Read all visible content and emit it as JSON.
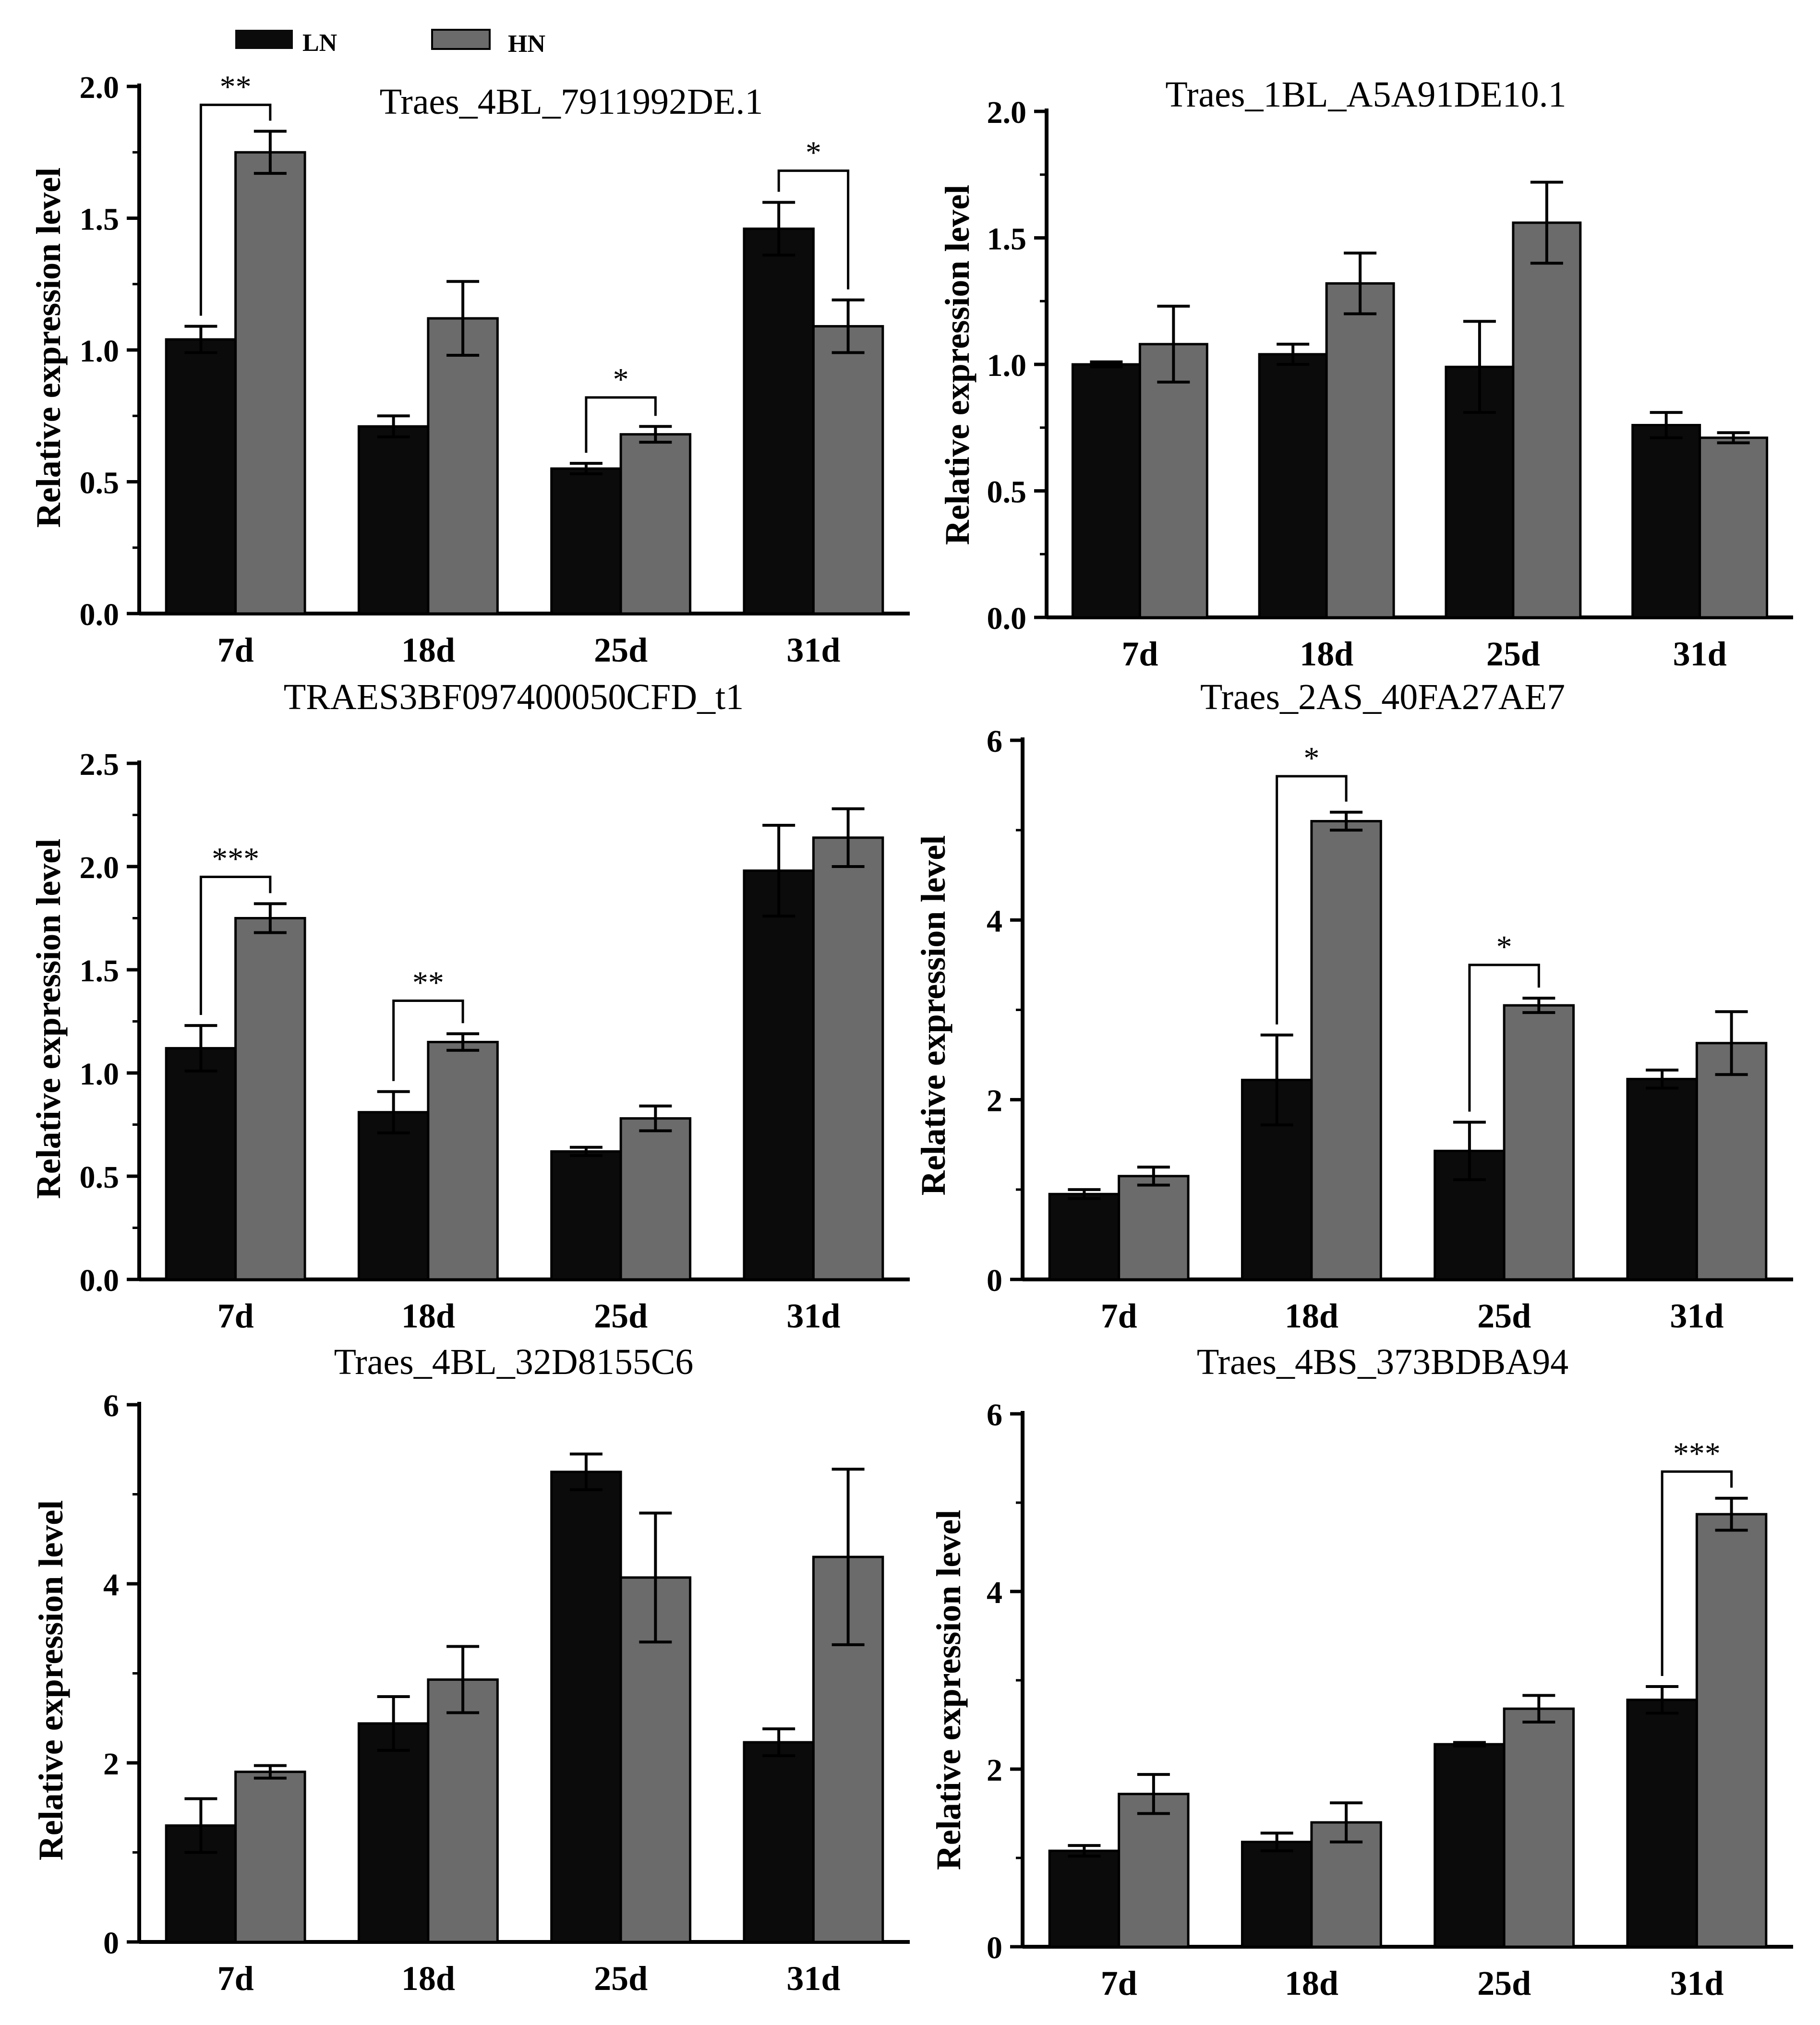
{
  "legend": {
    "items": [
      {
        "label": "LN",
        "color": "#0b0b0b"
      },
      {
        "label": "HN",
        "color": "#6b6b6b"
      }
    ]
  },
  "colors": {
    "ln": "#0b0b0b",
    "hn": "#6b6b6b",
    "axis": "#000000"
  },
  "chart_data": [
    {
      "type": "bar",
      "title": "Traes_4BL_7911992DE.1",
      "categories": [
        "7d",
        "18d",
        "25d",
        "31d"
      ],
      "ylabel": "Relative expression level",
      "ylim": [
        0,
        2.0
      ],
      "yticks": [
        0.0,
        0.5,
        1.0,
        1.5,
        2.0
      ],
      "tick_format": "0.0",
      "series": [
        {
          "name": "LN",
          "values": [
            1.04,
            0.71,
            0.55,
            1.46
          ],
          "errors": [
            0.05,
            0.04,
            0.02,
            0.1
          ]
        },
        {
          "name": "HN",
          "values": [
            1.75,
            1.12,
            0.68,
            1.09
          ],
          "errors": [
            0.08,
            0.14,
            0.03,
            0.1
          ]
        }
      ],
      "significance": [
        {
          "category": 0,
          "label": "**",
          "level": 1.93
        },
        {
          "category": 2,
          "label": "*",
          "level": 0.82
        },
        {
          "category": 3,
          "label": "*",
          "level": 1.68
        }
      ]
    },
    {
      "type": "bar",
      "title": "Traes_1BL_A5A91DE10.1",
      "categories": [
        "7d",
        "18d",
        "25d",
        "31d"
      ],
      "ylabel": "Relative expression level",
      "ylim": [
        0,
        2.0
      ],
      "yticks": [
        0.0,
        0.5,
        1.0,
        1.5,
        2.0
      ],
      "tick_format": "0.0",
      "series": [
        {
          "name": "LN",
          "values": [
            1.0,
            1.04,
            0.99,
            0.76
          ],
          "errors": [
            0.01,
            0.04,
            0.18,
            0.05
          ]
        },
        {
          "name": "HN",
          "values": [
            1.08,
            1.32,
            1.56,
            0.71
          ],
          "errors": [
            0.15,
            0.12,
            0.16,
            0.02
          ]
        }
      ],
      "significance": []
    },
    {
      "type": "bar",
      "title": "TRAES3BF097400050CFD_t1",
      "categories": [
        "7d",
        "18d",
        "25d",
        "31d"
      ],
      "ylabel": "Relative expression level",
      "ylim": [
        0,
        2.5
      ],
      "yticks": [
        0.0,
        0.5,
        1.0,
        1.5,
        2.0,
        2.5
      ],
      "tick_format": "0.0",
      "series": [
        {
          "name": "LN",
          "values": [
            1.12,
            0.81,
            0.62,
            1.98
          ],
          "errors": [
            0.11,
            0.1,
            0.02,
            0.22
          ]
        },
        {
          "name": "HN",
          "values": [
            1.75,
            1.15,
            0.78,
            2.14
          ],
          "errors": [
            0.07,
            0.04,
            0.06,
            0.14
          ]
        }
      ],
      "significance": [
        {
          "category": 0,
          "label": "***",
          "level": 1.95
        },
        {
          "category": 1,
          "label": "**",
          "level": 1.35
        }
      ]
    },
    {
      "type": "bar",
      "title": "Traes_2AS_40FA27AE7",
      "categories": [
        "7d",
        "18d",
        "25d",
        "31d"
      ],
      "ylabel": "Relative expression level",
      "ylim": [
        0,
        6
      ],
      "yticks": [
        0,
        2,
        4,
        6
      ],
      "tick_format": "0",
      "series": [
        {
          "name": "LN",
          "values": [
            0.95,
            2.22,
            1.43,
            2.23
          ],
          "errors": [
            0.05,
            0.5,
            0.32,
            0.1
          ]
        },
        {
          "name": "HN",
          "values": [
            1.15,
            5.1,
            3.05,
            2.63
          ],
          "errors": [
            0.1,
            0.1,
            0.08,
            0.35
          ]
        }
      ],
      "significance": [
        {
          "category": 1,
          "label": "*",
          "level": 5.6
        },
        {
          "category": 2,
          "label": "*",
          "level": 3.5
        }
      ]
    },
    {
      "type": "bar",
      "title": "Traes_4BL_32D8155C6",
      "categories": [
        "7d",
        "18d",
        "25d",
        "31d"
      ],
      "ylabel": "Relative expression level",
      "ylim": [
        0,
        6
      ],
      "yticks": [
        0,
        2,
        4,
        6
      ],
      "tick_format": "0",
      "series": [
        {
          "name": "LN",
          "values": [
            1.3,
            2.44,
            5.25,
            2.23
          ],
          "errors": [
            0.3,
            0.3,
            0.2,
            0.15
          ]
        },
        {
          "name": "HN",
          "values": [
            1.9,
            2.93,
            4.07,
            4.3
          ],
          "errors": [
            0.07,
            0.37,
            0.72,
            0.98
          ]
        }
      ],
      "significance": []
    },
    {
      "type": "bar",
      "title": "Traes_4BS_373BDBA94",
      "categories": [
        "7d",
        "18d",
        "25d",
        "31d"
      ],
      "ylabel": "Relative expression level",
      "ylim": [
        0,
        6
      ],
      "yticks": [
        0,
        2,
        4,
        6
      ],
      "tick_format": "0",
      "series": [
        {
          "name": "LN",
          "values": [
            1.08,
            1.18,
            2.28,
            2.78
          ],
          "errors": [
            0.06,
            0.1,
            0.02,
            0.15
          ]
        },
        {
          "name": "HN",
          "values": [
            1.72,
            1.4,
            2.68,
            4.87
          ],
          "errors": [
            0.22,
            0.22,
            0.15,
            0.18
          ]
        }
      ],
      "significance": [
        {
          "category": 3,
          "label": "***",
          "level": 5.35
        }
      ]
    }
  ]
}
